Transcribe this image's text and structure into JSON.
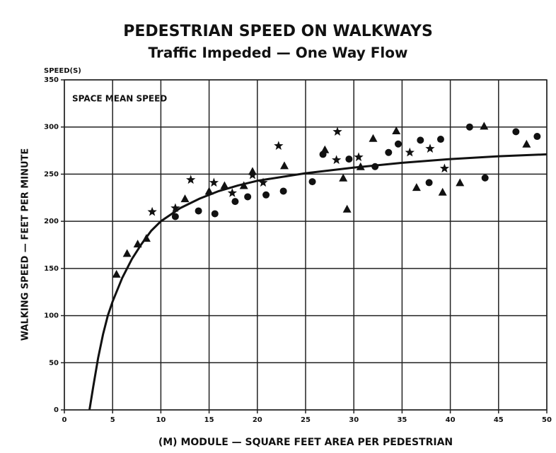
{
  "chart_data": {
    "type": "scatter",
    "title": "PEDESTRIAN SPEED ON WALKWAYS",
    "subtitle": "Traffic Impeded — One Way Flow",
    "y_axis_top_label": "SPEED(S)",
    "annotation": "SPACE MEAN SPEED",
    "ylabel": "WALKING SPEED — FEET PER MINUTE",
    "xlabel": "(M) MODULE — SQUARE FEET AREA PER PEDESTRIAN",
    "xlim": [
      0,
      50
    ],
    "xticks": [
      0,
      5,
      10,
      15,
      20,
      25,
      30,
      35,
      40,
      45,
      50
    ],
    "ylim": [
      0,
      350
    ],
    "yticks": [
      0,
      50,
      100,
      150,
      200,
      250,
      300,
      350
    ],
    "grid": true,
    "series": [
      {
        "marker": "triangle",
        "color": "#111111",
        "x": [
          5.4,
          6.5,
          7.6,
          8.5,
          12.5,
          15,
          16.6,
          18.6,
          19.5,
          22.8,
          27,
          29.3,
          28.9,
          30.7,
          32,
          34.4,
          36.5,
          39.2,
          41,
          43.5,
          47.9
        ],
        "values": [
          144,
          166,
          176,
          182,
          224,
          232,
          238,
          238,
          253,
          259,
          276,
          213,
          246,
          258,
          288,
          296,
          236,
          231,
          241,
          301,
          282
        ]
      },
      {
        "marker": "circle",
        "color": "#111111",
        "x": [
          11.5,
          13.9,
          15.6,
          17.7,
          19,
          20.9,
          22.7,
          25.7,
          26.8,
          29.5,
          32.2,
          33.6,
          34.6,
          36.9,
          37.8,
          39,
          42,
          43.6,
          46.8,
          49
        ],
        "values": [
          205,
          211,
          208,
          221,
          226,
          228,
          232,
          242,
          271,
          266,
          258,
          273,
          282,
          286,
          241,
          287,
          300,
          246,
          295,
          290
        ]
      },
      {
        "marker": "star",
        "color": "#111111",
        "x": [
          9.1,
          11.5,
          13.1,
          15.5,
          17.4,
          19.5,
          20.6,
          22.2,
          28.2,
          28.3,
          30.5,
          35.8,
          37.9,
          39.4
        ],
        "values": [
          210,
          214,
          244,
          241,
          230,
          249,
          241,
          280,
          265,
          295,
          268,
          273,
          277,
          256
        ]
      },
      {
        "marker": "line",
        "color": "#111111",
        "x": [
          2.6,
          3,
          3.5,
          4,
          4.5,
          5,
          6,
          7,
          8,
          9,
          10,
          12,
          14,
          16,
          18,
          20,
          25,
          30,
          35,
          40,
          45,
          50
        ],
        "values": [
          0,
          25,
          55,
          80,
          100,
          115,
          140,
          160,
          176,
          190,
          200,
          214,
          224,
          232,
          238,
          243,
          251,
          257,
          262,
          266,
          269,
          271
        ]
      }
    ]
  }
}
